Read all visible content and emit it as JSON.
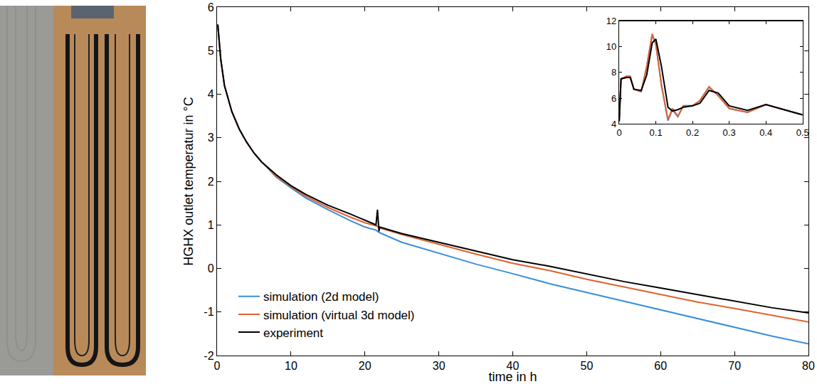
{
  "chart_data": [
    {
      "type": "line",
      "xlabel": "time in h",
      "ylabel": "HGHX outlet temperatur in °C",
      "x": [
        0.1,
        0.5,
        1,
        2,
        3,
        4,
        5,
        6,
        8,
        10,
        12,
        15,
        18,
        20,
        21.5,
        21.7,
        21.9,
        22,
        25,
        30,
        35,
        40,
        45,
        50,
        55,
        60,
        65,
        70,
        75,
        80
      ],
      "series": [
        {
          "name": "simulation (2d model)",
          "color": "#3a8edb",
          "values": [
            5.6,
            4.8,
            4.2,
            3.6,
            3.2,
            2.9,
            2.65,
            2.45,
            2.1,
            1.85,
            1.62,
            1.35,
            1.1,
            0.95,
            0.88,
            0.86,
            0.84,
            0.82,
            0.6,
            0.35,
            0.1,
            -0.12,
            -0.35,
            -0.55,
            -0.75,
            -0.95,
            -1.15,
            -1.35,
            -1.55,
            -1.73
          ]
        },
        {
          "name": "simulation (virtual 3d model)",
          "color": "#e0622e",
          "values": [
            5.6,
            4.8,
            4.2,
            3.6,
            3.2,
            2.9,
            2.65,
            2.45,
            2.12,
            1.88,
            1.66,
            1.4,
            1.18,
            1.05,
            0.98,
            0.96,
            0.94,
            0.93,
            0.78,
            0.55,
            0.33,
            0.12,
            -0.05,
            -0.25,
            -0.42,
            -0.6,
            -0.77,
            -0.92,
            -1.08,
            -1.23
          ]
        },
        {
          "name": "experiment",
          "color": "#000000",
          "values": [
            5.6,
            4.8,
            4.2,
            3.6,
            3.2,
            2.9,
            2.65,
            2.45,
            2.15,
            1.9,
            1.7,
            1.45,
            1.25,
            1.1,
            1.0,
            1.35,
            0.85,
            0.95,
            0.8,
            0.6,
            0.4,
            0.2,
            0.05,
            -0.12,
            -0.3,
            -0.45,
            -0.6,
            -0.75,
            -0.9,
            -1.02
          ]
        }
      ],
      "xlim": [
        0,
        80
      ],
      "xticks": [
        0,
        10,
        20,
        30,
        40,
        50,
        60,
        70,
        80
      ],
      "ylim": [
        -2,
        6
      ],
      "yticks": [
        -2,
        -1,
        0,
        1,
        2,
        3,
        4,
        5,
        6
      ],
      "legend": "lower left",
      "grid": false
    },
    {
      "type": "line",
      "x": [
        0,
        0.005,
        0.02,
        0.03,
        0.04,
        0.06,
        0.075,
        0.09,
        0.1,
        0.115,
        0.133,
        0.145,
        0.16,
        0.175,
        0.2,
        0.22,
        0.245,
        0.27,
        0.3,
        0.35,
        0.4,
        0.45,
        0.5
      ],
      "series": [
        {
          "name": "simulation (2d model)",
          "color": "#3a8edb",
          "values": [
            4.2,
            7.5,
            7.7,
            7.7,
            6.7,
            6.5,
            8.4,
            10.9,
            10.2,
            7.1,
            4.25,
            5.1,
            4.55,
            5.4,
            5.4,
            5.8,
            6.85,
            6.2,
            5.2,
            4.9,
            5.5,
            5.1,
            4.7
          ]
        },
        {
          "name": "simulation (virtual 3d model)",
          "color": "#e0622e",
          "values": [
            4.2,
            7.5,
            7.7,
            7.7,
            6.7,
            6.5,
            8.5,
            11.0,
            10.2,
            7.0,
            4.3,
            5.2,
            4.6,
            5.4,
            5.4,
            5.8,
            6.9,
            6.2,
            5.2,
            4.9,
            5.5,
            5.1,
            4.7
          ]
        },
        {
          "name": "experiment",
          "color": "#000000",
          "values": [
            4.2,
            7.5,
            7.6,
            7.6,
            6.7,
            6.6,
            7.8,
            10.3,
            10.6,
            8.5,
            5.3,
            5.0,
            5.1,
            5.3,
            5.4,
            5.6,
            6.6,
            6.4,
            5.4,
            5.05,
            5.5,
            5.1,
            4.7
          ]
        }
      ],
      "xlim": [
        0,
        0.5
      ],
      "xticks": [
        0,
        0.1,
        0.2,
        0.3,
        0.4,
        0.5
      ],
      "ylim": [
        4,
        12
      ],
      "yticks": [
        4,
        6,
        8,
        10,
        12
      ],
      "grid": false
    }
  ]
}
